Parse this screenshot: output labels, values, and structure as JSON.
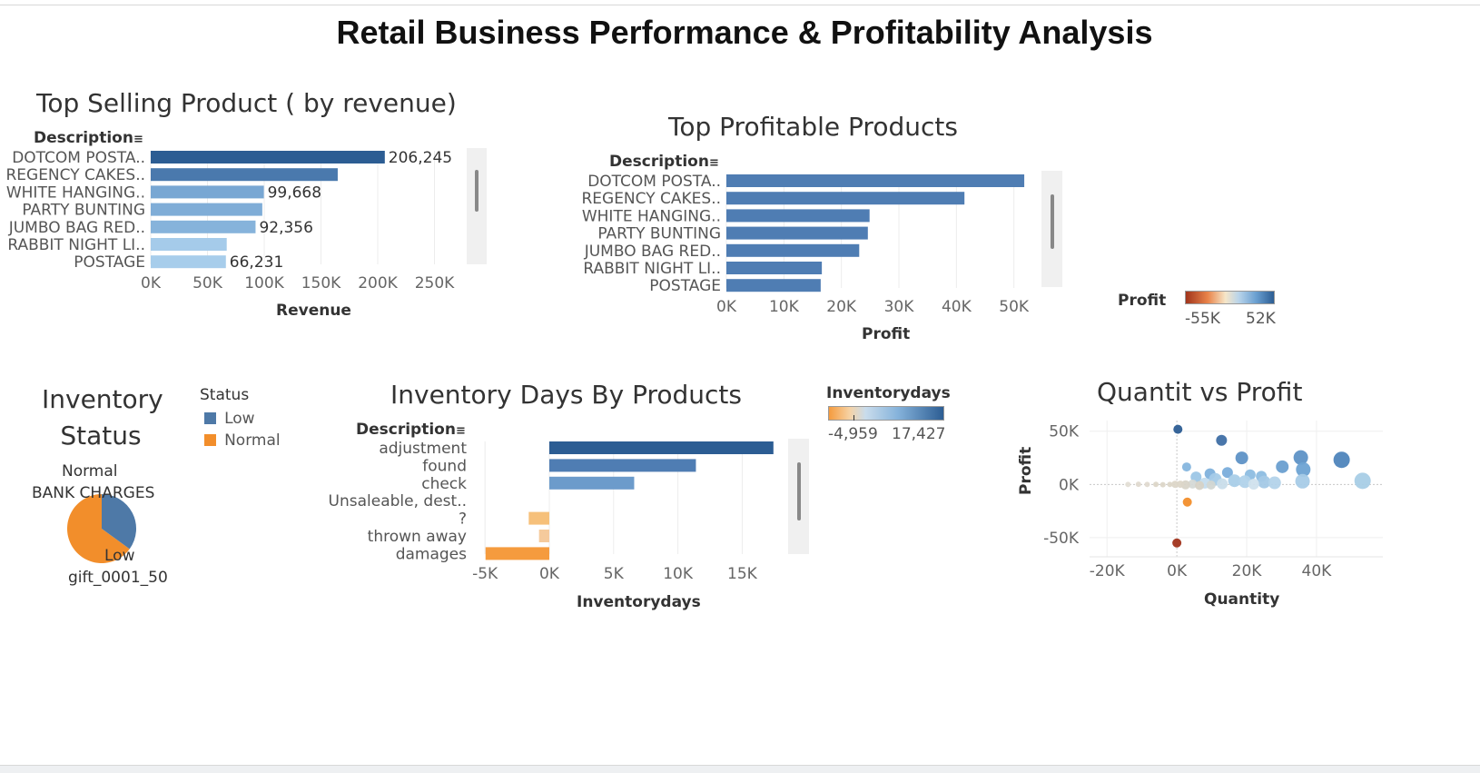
{
  "dashboard": {
    "title": "Retail Business Performance & Profitability Analysis"
  },
  "chart_data": [
    {
      "id": "top_selling",
      "type": "bar",
      "title": "Top Selling Product ( by revenue)",
      "ylabel": "Description",
      "xlabel": "Revenue",
      "categories": [
        "DOTCOM POSTA..",
        "REGENCY CAKES..",
        "WHITE HANGING..",
        "PARTY BUNTING",
        "JUMBO BAG RED..",
        "RABBIT NIGHT LI..",
        "POSTAGE"
      ],
      "values": [
        206245,
        164762,
        99668,
        98302,
        92356,
        66964,
        66231
      ],
      "data_labels": [
        "206,245",
        "",
        "99,668",
        "",
        "92,356",
        "",
        "66,231"
      ],
      "colors": [
        "#2c5d93",
        "#4a79ad",
        "#78a7d3",
        "#7fadd7",
        "#86b3db",
        "#a5cbea",
        "#a7cdeb"
      ],
      "xlim": [
        0,
        280000
      ],
      "xticks": [
        0,
        50000,
        100000,
        150000,
        200000,
        250000
      ],
      "xtick_labels": [
        "0K",
        "50K",
        "100K",
        "150K",
        "200K",
        "250K"
      ]
    },
    {
      "id": "top_profitable",
      "type": "bar",
      "title": "Top Profitable Products",
      "ylabel": "Description",
      "xlabel": "Profit",
      "categories": [
        "DOTCOM POSTA..",
        "REGENCY CAKES..",
        "WHITE HANGING..",
        "PARTY BUNTING",
        "JUMBO BAG RED..",
        "RABBIT NIGHT LI..",
        "POSTAGE"
      ],
      "values": [
        51800,
        41400,
        24900,
        24600,
        23100,
        16600,
        16400
      ],
      "colors": [
        "#4f7db3",
        "#4f7db3",
        "#4f7db3",
        "#4f7db3",
        "#4f7db3",
        "#4f7db3",
        "#4f7db3"
      ],
      "xlim": [
        0,
        54000
      ],
      "xticks": [
        0,
        10000,
        20000,
        30000,
        40000,
        50000
      ],
      "xtick_labels": [
        "0K",
        "10K",
        "20K",
        "30K",
        "40K",
        "50K"
      ],
      "legend": {
        "title": "Profit",
        "min_label": "-55K",
        "max_label": "52K"
      }
    },
    {
      "id": "inventory_status",
      "type": "pie",
      "title": [
        "Inventory",
        "Status"
      ],
      "labels": [
        "Normal",
        "Low"
      ],
      "values": [
        65,
        35
      ],
      "colors": [
        "#f28e2b",
        "#4e79a7"
      ],
      "slice_labels": [
        "Normal",
        "BANK CHARGES",
        "Low",
        "gift_0001_50"
      ],
      "legend": {
        "title": "Status",
        "items": [
          {
            "label": "Low",
            "color": "#4e79a7"
          },
          {
            "label": "Normal",
            "color": "#f28e2b"
          }
        ]
      }
    },
    {
      "id": "inventory_days",
      "type": "bar",
      "title": "Inventory Days By Products",
      "ylabel": "Description",
      "xlabel": "Inventorydays",
      "categories": [
        "adjustment",
        "found",
        "check",
        "Unsaleable, dest..",
        "?",
        "thrown away",
        "damages"
      ],
      "values": [
        17427,
        11400,
        6600,
        0,
        -1600,
        -800,
        -4959
      ],
      "colors": [
        "#2c5d93",
        "#4f7db3",
        "#6c9bcb",
        "#c6d7e8",
        "#f6c07a",
        "#f5ca9c",
        "#f59b3e"
      ],
      "xlim": [
        -6000,
        18500
      ],
      "xticks": [
        -5000,
        0,
        5000,
        10000,
        15000
      ],
      "xtick_labels": [
        "-5K",
        "0K",
        "5K",
        "10K",
        "15K"
      ],
      "legend": {
        "title": "Inventorydays",
        "min_label": "-4,959",
        "max_label": "17,427"
      }
    },
    {
      "id": "quantity_vs_profit",
      "type": "scatter",
      "title": "Quantit vs Profit",
      "xlabel": "Quantity",
      "ylabel": "Profit",
      "xlim": [
        -25000,
        59000
      ],
      "ylim": [
        -68000,
        60000
      ],
      "xticks": [
        -20000,
        0,
        20000,
        40000
      ],
      "xtick_labels": [
        "-20K",
        "0K",
        "20K",
        "40K"
      ],
      "yticks": [
        50000,
        0,
        -50000
      ],
      "ytick_labels": [
        "50K",
        "0K",
        "-50K"
      ],
      "points": [
        {
          "x": 300,
          "y": 51800,
          "r": 5,
          "c": "#2c5d93"
        },
        {
          "x": 12800,
          "y": 41400,
          "r": 6,
          "c": "#3f6fa5"
        },
        {
          "x": 18600,
          "y": 24900,
          "r": 7,
          "c": "#5e92c6"
        },
        {
          "x": 35500,
          "y": 25300,
          "r": 8,
          "c": "#5e92c6"
        },
        {
          "x": 47200,
          "y": 23100,
          "r": 9,
          "c": "#4f85bc"
        },
        {
          "x": 30200,
          "y": 16600,
          "r": 7,
          "c": "#6a9fd0"
        },
        {
          "x": 36200,
          "y": 14000,
          "r": 8,
          "c": "#6ea3d3"
        },
        {
          "x": 2800,
          "y": 16400,
          "r": 5,
          "c": "#86b6de"
        },
        {
          "x": 9500,
          "y": 10000,
          "r": 6,
          "c": "#7fb1dc"
        },
        {
          "x": 14500,
          "y": 11200,
          "r": 6,
          "c": "#7aaddb"
        },
        {
          "x": 21000,
          "y": 9000,
          "r": 6,
          "c": "#8dbde2"
        },
        {
          "x": 24200,
          "y": 7600,
          "r": 6,
          "c": "#8dbde2"
        },
        {
          "x": 5500,
          "y": 7000,
          "r": 6,
          "c": "#9cc6e6"
        },
        {
          "x": 11000,
          "y": 4800,
          "r": 7,
          "c": "#a5cbe8"
        },
        {
          "x": 16500,
          "y": 3500,
          "r": 7,
          "c": "#a9cee8"
        },
        {
          "x": 19500,
          "y": 2600,
          "r": 7,
          "c": "#b0d2ea"
        },
        {
          "x": 25000,
          "y": 2300,
          "r": 7,
          "c": "#a4c9e6"
        },
        {
          "x": 28000,
          "y": 1500,
          "r": 7,
          "c": "#b3d3ea"
        },
        {
          "x": 36000,
          "y": 3000,
          "r": 8,
          "c": "#a6cbe7"
        },
        {
          "x": 53200,
          "y": 3400,
          "r": 9,
          "c": "#a8cde6"
        },
        {
          "x": 8000,
          "y": 1200,
          "r": 6,
          "c": "#c4dced"
        },
        {
          "x": 13000,
          "y": 600,
          "r": 6,
          "c": "#c9ddea"
        },
        {
          "x": 22000,
          "y": 300,
          "r": 6,
          "c": "#d0e1ed"
        },
        {
          "x": 4500,
          "y": 400,
          "r": 5,
          "c": "#d5d9d6"
        },
        {
          "x": 2500,
          "y": -400,
          "r": 5,
          "c": "#d8d4c8"
        },
        {
          "x": 1000,
          "y": 200,
          "r": 4,
          "c": "#dcd6c8"
        },
        {
          "x": -500,
          "y": 100,
          "r": 4,
          "c": "#dcd6c8"
        },
        {
          "x": -2000,
          "y": 0,
          "r": 3,
          "c": "#dcd6c8"
        },
        {
          "x": -4000,
          "y": -300,
          "r": 3,
          "c": "#dcd6c8"
        },
        {
          "x": -6000,
          "y": 100,
          "r": 3,
          "c": "#dcd6c8"
        },
        {
          "x": -8500,
          "y": 0,
          "r": 3,
          "c": "#e0dad0"
        },
        {
          "x": -11000,
          "y": 200,
          "r": 3,
          "c": "#e0dad0"
        },
        {
          "x": -14000,
          "y": 0,
          "r": 3,
          "c": "#e3ded5"
        },
        {
          "x": 6500,
          "y": -1000,
          "r": 5,
          "c": "#d6d2c6"
        },
        {
          "x": 9800,
          "y": -600,
          "r": 5,
          "c": "#d2d6d2"
        },
        {
          "x": 3000,
          "y": -16600,
          "r": 5,
          "c": "#f28e2b"
        },
        {
          "x": 0,
          "y": -55000,
          "r": 5,
          "c": "#a1341c"
        }
      ]
    }
  ]
}
